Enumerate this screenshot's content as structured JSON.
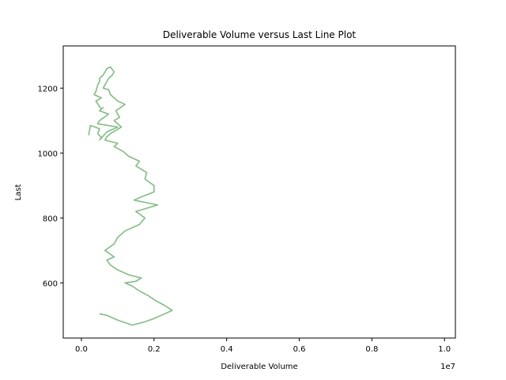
{
  "chart_data": {
    "type": "line",
    "title": "Deliverable Volume versus Last Line Plot",
    "xlabel": "Deliverable Volume",
    "ylabel": "Last",
    "x_offset_label": "1e7",
    "xlim": [
      -0.05,
      1.03
    ],
    "ylim": [
      430,
      1330
    ],
    "x_ticks": [
      0.0,
      0.2,
      0.4,
      0.6,
      0.8,
      1.0
    ],
    "x_tick_labels": [
      "0.0",
      "0.2",
      "0.4",
      "0.6",
      "0.8",
      "1.0"
    ],
    "y_ticks": [
      600,
      800,
      1000,
      1200
    ],
    "y_tick_labels": [
      "600",
      "800",
      "1000",
      "1200"
    ],
    "grid": false,
    "legend": "none",
    "series": [
      {
        "color": "#7fbf7f",
        "x": [
          0.02,
          0.025,
          0.05,
          0.045,
          0.055,
          0.05,
          0.07,
          0.1,
          0.045,
          0.05,
          0.075,
          0.05,
          0.06,
          0.055,
          0.04,
          0.055,
          0.035,
          0.04,
          0.045,
          0.05,
          0.05,
          0.06,
          0.065,
          0.07,
          0.08,
          0.09,
          0.085,
          0.075,
          0.07,
          0.065,
          0.06,
          0.075,
          0.08,
          0.085,
          0.1,
          0.12,
          0.095,
          0.105,
          0.09,
          0.11,
          0.08,
          0.07,
          0.065,
          0.1,
          0.09,
          0.115,
          0.13,
          0.16,
          0.15,
          0.18,
          0.175,
          0.2,
          0.2,
          0.165,
          0.145,
          0.21,
          0.15,
          0.175,
          0.16,
          0.12,
          0.1,
          0.09,
          0.065,
          0.09,
          0.07,
          0.08,
          0.1,
          0.13,
          0.165,
          0.15,
          0.12,
          0.14,
          0.16,
          0.185,
          0.205,
          0.23,
          0.25,
          0.22,
          0.2,
          0.175,
          0.14,
          0.1,
          0.08,
          0.07,
          0.05
        ],
        "y": [
          1055,
          1085,
          1075,
          1060,
          1048,
          1040,
          1065,
          1080,
          1090,
          1100,
          1120,
          1130,
          1140,
          1135,
          1160,
          1170,
          1180,
          1190,
          1210,
          1220,
          1230,
          1240,
          1250,
          1260,
          1265,
          1250,
          1240,
          1230,
          1220,
          1210,
          1200,
          1195,
          1180,
          1175,
          1160,
          1150,
          1130,
          1110,
          1100,
          1080,
          1060,
          1050,
          1040,
          1030,
          1020,
          1005,
          990,
          975,
          960,
          940,
          920,
          900,
          880,
          865,
          855,
          840,
          820,
          800,
          780,
          760,
          740,
          720,
          700,
          680,
          670,
          655,
          640,
          625,
          615,
          605,
          600,
          590,
          575,
          560,
          545,
          530,
          515,
          500,
          490,
          480,
          470,
          485,
          495,
          500,
          505
        ]
      }
    ]
  }
}
